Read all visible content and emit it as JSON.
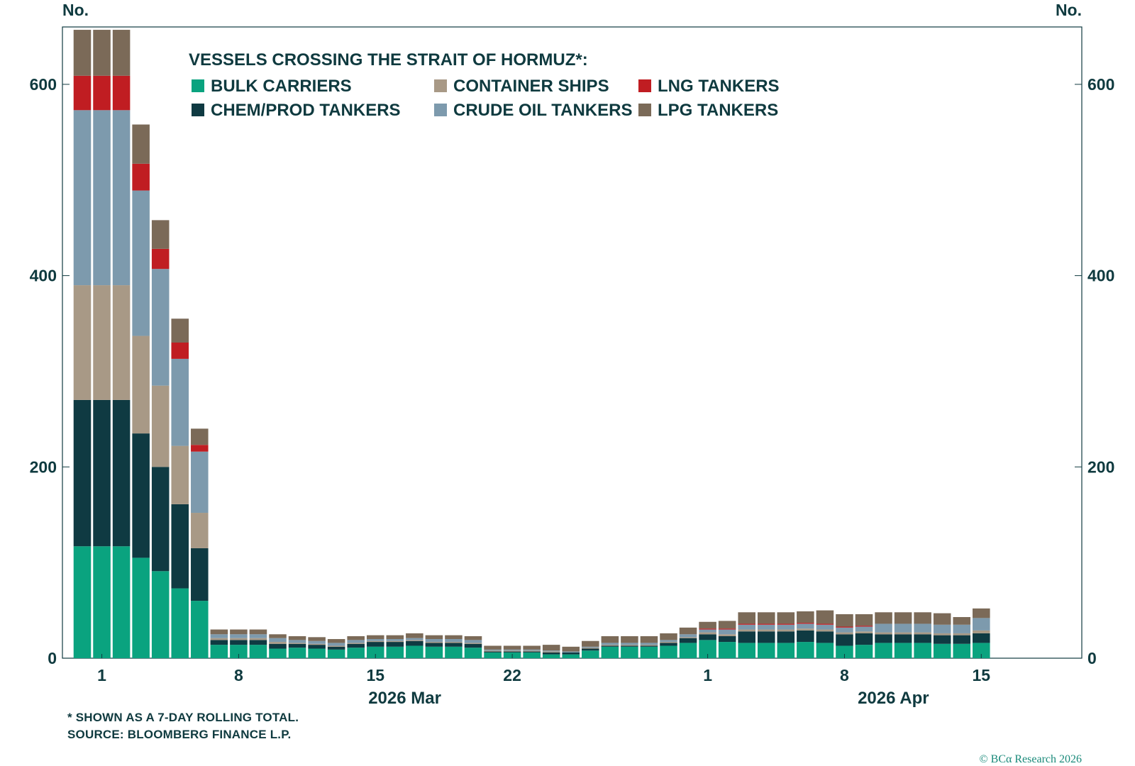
{
  "chart_data": {
    "type": "bar",
    "stacked": true,
    "title": "VESSELS CROSSING THE STRAIT OF HORMUZ*:",
    "y_axis_label_left": "No.",
    "y_axis_label_right": "No.",
    "ylim": [
      0,
      660
    ],
    "y_ticks": [
      0,
      200,
      400,
      600
    ],
    "x_ticks": [
      {
        "day": 1,
        "label": "1"
      },
      {
        "day": 8,
        "label": "8"
      },
      {
        "day": 15,
        "label": "15"
      },
      {
        "day": 22,
        "label": "22"
      },
      {
        "day": 32,
        "label": "1"
      },
      {
        "day": 39,
        "label": "8"
      },
      {
        "day": 46,
        "label": "15"
      }
    ],
    "month_labels": [
      {
        "day": 16.5,
        "label": "2026 Mar"
      },
      {
        "day": 41.5,
        "label": "2026 Apr"
      }
    ],
    "dates": [
      "2026-02-28",
      "2026-03-01",
      "2026-03-02",
      "2026-03-03",
      "2026-03-04",
      "2026-03-05",
      "2026-03-06",
      "2026-03-07",
      "2026-03-08",
      "2026-03-09",
      "2026-03-10",
      "2026-03-11",
      "2026-03-12",
      "2026-03-13",
      "2026-03-14",
      "2026-03-15",
      "2026-03-16",
      "2026-03-17",
      "2026-03-18",
      "2026-03-19",
      "2026-03-20",
      "2026-03-21",
      "2026-03-22",
      "2026-03-23",
      "2026-03-24",
      "2026-03-25",
      "2026-03-26",
      "2026-03-27",
      "2026-03-28",
      "2026-03-29",
      "2026-03-30",
      "2026-03-31",
      "2026-04-01",
      "2026-04-02",
      "2026-04-03",
      "2026-04-04",
      "2026-04-05",
      "2026-04-06",
      "2026-04-07",
      "2026-04-08",
      "2026-04-09",
      "2026-04-10",
      "2026-04-11",
      "2026-04-12",
      "2026-04-13",
      "2026-04-14",
      "2026-04-15",
      "2026-04-16"
    ],
    "series": [
      {
        "name": "BULK CARRIERS",
        "color": "#0aa37f",
        "values": [
          117,
          117,
          117,
          105,
          91,
          73,
          60,
          14,
          14,
          14,
          10,
          11,
          10,
          9,
          11,
          12,
          12,
          13,
          12,
          12,
          11,
          6,
          6,
          6,
          4,
          4,
          8,
          12,
          12,
          12,
          13,
          16,
          19,
          17,
          16,
          16,
          16,
          17,
          16,
          13,
          14,
          16,
          16,
          16,
          15,
          15,
          16,
          null
        ]
      },
      {
        "name": "CHEM/PROD TANKERS",
        "color": "#0f3a42",
        "values": [
          153,
          153,
          153,
          130,
          109,
          88,
          55,
          5,
          5,
          5,
          5,
          4,
          4,
          3,
          4,
          5,
          5,
          5,
          4,
          4,
          4,
          1,
          1,
          1,
          2,
          2,
          2,
          1,
          1,
          1,
          3,
          5,
          6,
          6,
          12,
          12,
          12,
          12,
          12,
          12,
          12,
          9,
          9,
          9,
          9,
          9,
          10,
          null
        ]
      },
      {
        "name": "CONTAINER SHIPS",
        "color": "#a89986",
        "values": [
          120,
          120,
          120,
          102,
          85,
          61,
          37,
          2,
          2,
          2,
          2,
          1,
          1,
          1,
          1,
          1,
          1,
          1,
          1,
          1,
          1,
          1,
          1,
          1,
          1,
          0,
          1,
          1,
          1,
          1,
          1,
          1,
          2,
          2,
          2,
          2,
          2,
          2,
          2,
          2,
          2,
          2,
          2,
          2,
          2,
          2,
          3,
          null
        ]
      },
      {
        "name": "CRUDE OIL TANKERS",
        "color": "#7d9aad",
        "values": [
          183,
          183,
          183,
          152,
          122,
          91,
          64,
          4,
          4,
          4,
          4,
          3,
          3,
          3,
          3,
          2,
          2,
          2,
          3,
          3,
          3,
          1,
          1,
          1,
          1,
          1,
          1,
          2,
          2,
          2,
          2,
          3,
          3,
          5,
          5,
          5,
          5,
          5,
          5,
          5,
          5,
          9,
          9,
          9,
          9,
          9,
          13,
          null
        ]
      },
      {
        "name": "LNG TANKERS",
        "color": "#c01d22",
        "values": [
          36,
          36,
          36,
          28,
          21,
          17,
          7,
          0,
          0,
          0,
          0,
          0,
          0,
          0,
          0,
          0,
          0,
          0,
          0,
          0,
          0,
          0,
          0,
          0,
          0,
          0,
          0,
          0,
          0,
          0,
          0,
          0,
          1,
          1,
          1,
          1,
          1,
          1,
          1,
          1,
          1,
          0,
          0,
          0,
          0,
          0,
          0,
          null
        ]
      },
      {
        "name": "LPG TANKERS",
        "color": "#7b6a58",
        "values": [
          48,
          48,
          48,
          41,
          30,
          25,
          17,
          5,
          5,
          5,
          4,
          4,
          4,
          4,
          4,
          4,
          4,
          5,
          4,
          4,
          4,
          4,
          4,
          4,
          6,
          5,
          6,
          7,
          7,
          7,
          7,
          7,
          7,
          8,
          12,
          12,
          12,
          12,
          14,
          13,
          12,
          12,
          12,
          12,
          12,
          8,
          10,
          null
        ]
      }
    ],
    "legend_position": "top-left",
    "grid": false
  },
  "footnotes": {
    "line1": "* SHOWN AS A 7-DAY ROLLING TOTAL.",
    "line2": "SOURCE: BLOOMBERG FINANCE L.P."
  },
  "copyright": "© BCα Research 2026"
}
